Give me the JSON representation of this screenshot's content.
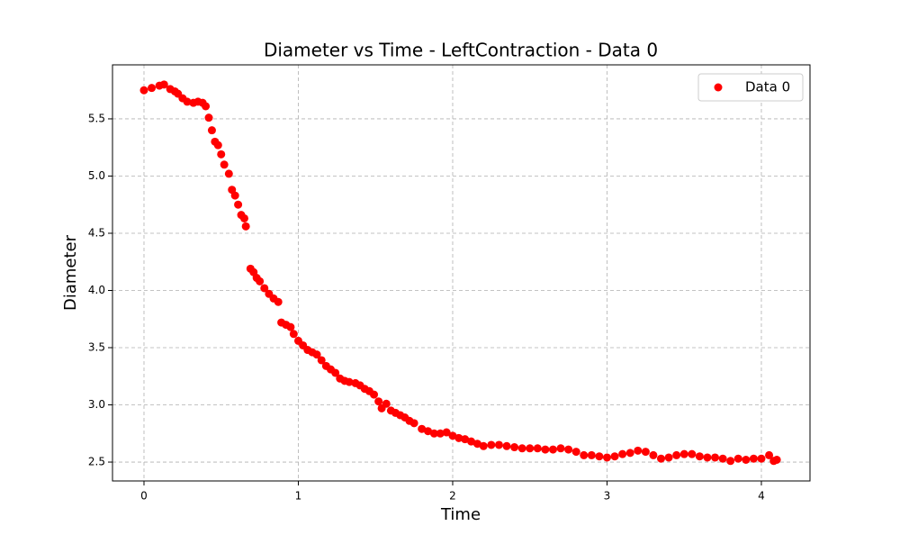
{
  "chart_data": {
    "type": "scatter",
    "title": "Diameter vs Time - LeftContraction - Data 0",
    "xlabel": "Time",
    "ylabel": "Diameter",
    "x": [
      0,
      0.05,
      0.1,
      0.13,
      0.17,
      0.2,
      0.22,
      0.25,
      0.28,
      0.32,
      0.35,
      0.38,
      0.4,
      0.42,
      0.44,
      0.46,
      0.48,
      0.5,
      0.52,
      0.55,
      0.57,
      0.59,
      0.61,
      0.63,
      0.65,
      0.66,
      0.69,
      0.71,
      0.73,
      0.75,
      0.78,
      0.81,
      0.84,
      0.87,
      0.89,
      0.92,
      0.95,
      0.97,
      1.0,
      1.03,
      1.06,
      1.09,
      1.12,
      1.15,
      1.18,
      1.21,
      1.24,
      1.27,
      1.3,
      1.33,
      1.37,
      1.4,
      1.43,
      1.46,
      1.49,
      1.52,
      1.54,
      1.57,
      1.6,
      1.63,
      1.66,
      1.69,
      1.72,
      1.75,
      1.8,
      1.84,
      1.88,
      1.92,
      1.96,
      2.0,
      2.04,
      2.08,
      2.12,
      2.16,
      2.2,
      2.25,
      2.3,
      2.35,
      2.4,
      2.45,
      2.5,
      2.55,
      2.6,
      2.65,
      2.7,
      2.75,
      2.8,
      2.85,
      2.9,
      2.95,
      3.0,
      3.05,
      3.1,
      3.15,
      3.2,
      3.25,
      3.3,
      3.35,
      3.4,
      3.45,
      3.5,
      3.55,
      3.6,
      3.65,
      3.7,
      3.75,
      3.8,
      3.85,
      3.9,
      3.95,
      4.0,
      4.05,
      4.08,
      4.1
    ],
    "series": [
      {
        "name": "Data 0",
        "color": "#ff0000",
        "values": [
          5.75,
          5.77,
          5.79,
          5.8,
          5.76,
          5.74,
          5.72,
          5.68,
          5.65,
          5.64,
          5.65,
          5.64,
          5.61,
          5.51,
          5.4,
          5.3,
          5.27,
          5.19,
          5.1,
          5.02,
          4.88,
          4.83,
          4.75,
          4.66,
          4.63,
          4.56,
          4.19,
          4.16,
          4.11,
          4.08,
          4.02,
          3.97,
          3.93,
          3.9,
          3.72,
          3.7,
          3.68,
          3.62,
          3.56,
          3.52,
          3.48,
          3.46,
          3.44,
          3.39,
          3.34,
          3.31,
          3.28,
          3.23,
          3.21,
          3.2,
          3.19,
          3.17,
          3.14,
          3.12,
          3.09,
          3.03,
          2.97,
          3.01,
          2.95,
          2.93,
          2.91,
          2.89,
          2.86,
          2.84,
          2.79,
          2.77,
          2.75,
          2.75,
          2.76,
          2.73,
          2.71,
          2.7,
          2.68,
          2.66,
          2.64,
          2.65,
          2.65,
          2.64,
          2.63,
          2.62,
          2.62,
          2.62,
          2.61,
          2.61,
          2.62,
          2.61,
          2.59,
          2.56,
          2.56,
          2.55,
          2.54,
          2.55,
          2.57,
          2.58,
          2.6,
          2.59,
          2.56,
          2.53,
          2.54,
          2.56,
          2.57,
          2.57,
          2.55,
          2.54,
          2.54,
          2.53,
          2.51,
          2.53,
          2.52,
          2.53,
          2.53,
          2.56,
          2.51,
          2.52
        ]
      }
    ],
    "xlim": [
      -0.204,
      4.315
    ],
    "ylim": [
      2.335,
      5.972
    ],
    "xticks": [
      0,
      1,
      2,
      3,
      4
    ],
    "yticks": [
      2.5,
      3.0,
      3.5,
      4.0,
      4.5,
      5.0,
      5.5
    ],
    "grid": true,
    "legend": "upper right"
  }
}
